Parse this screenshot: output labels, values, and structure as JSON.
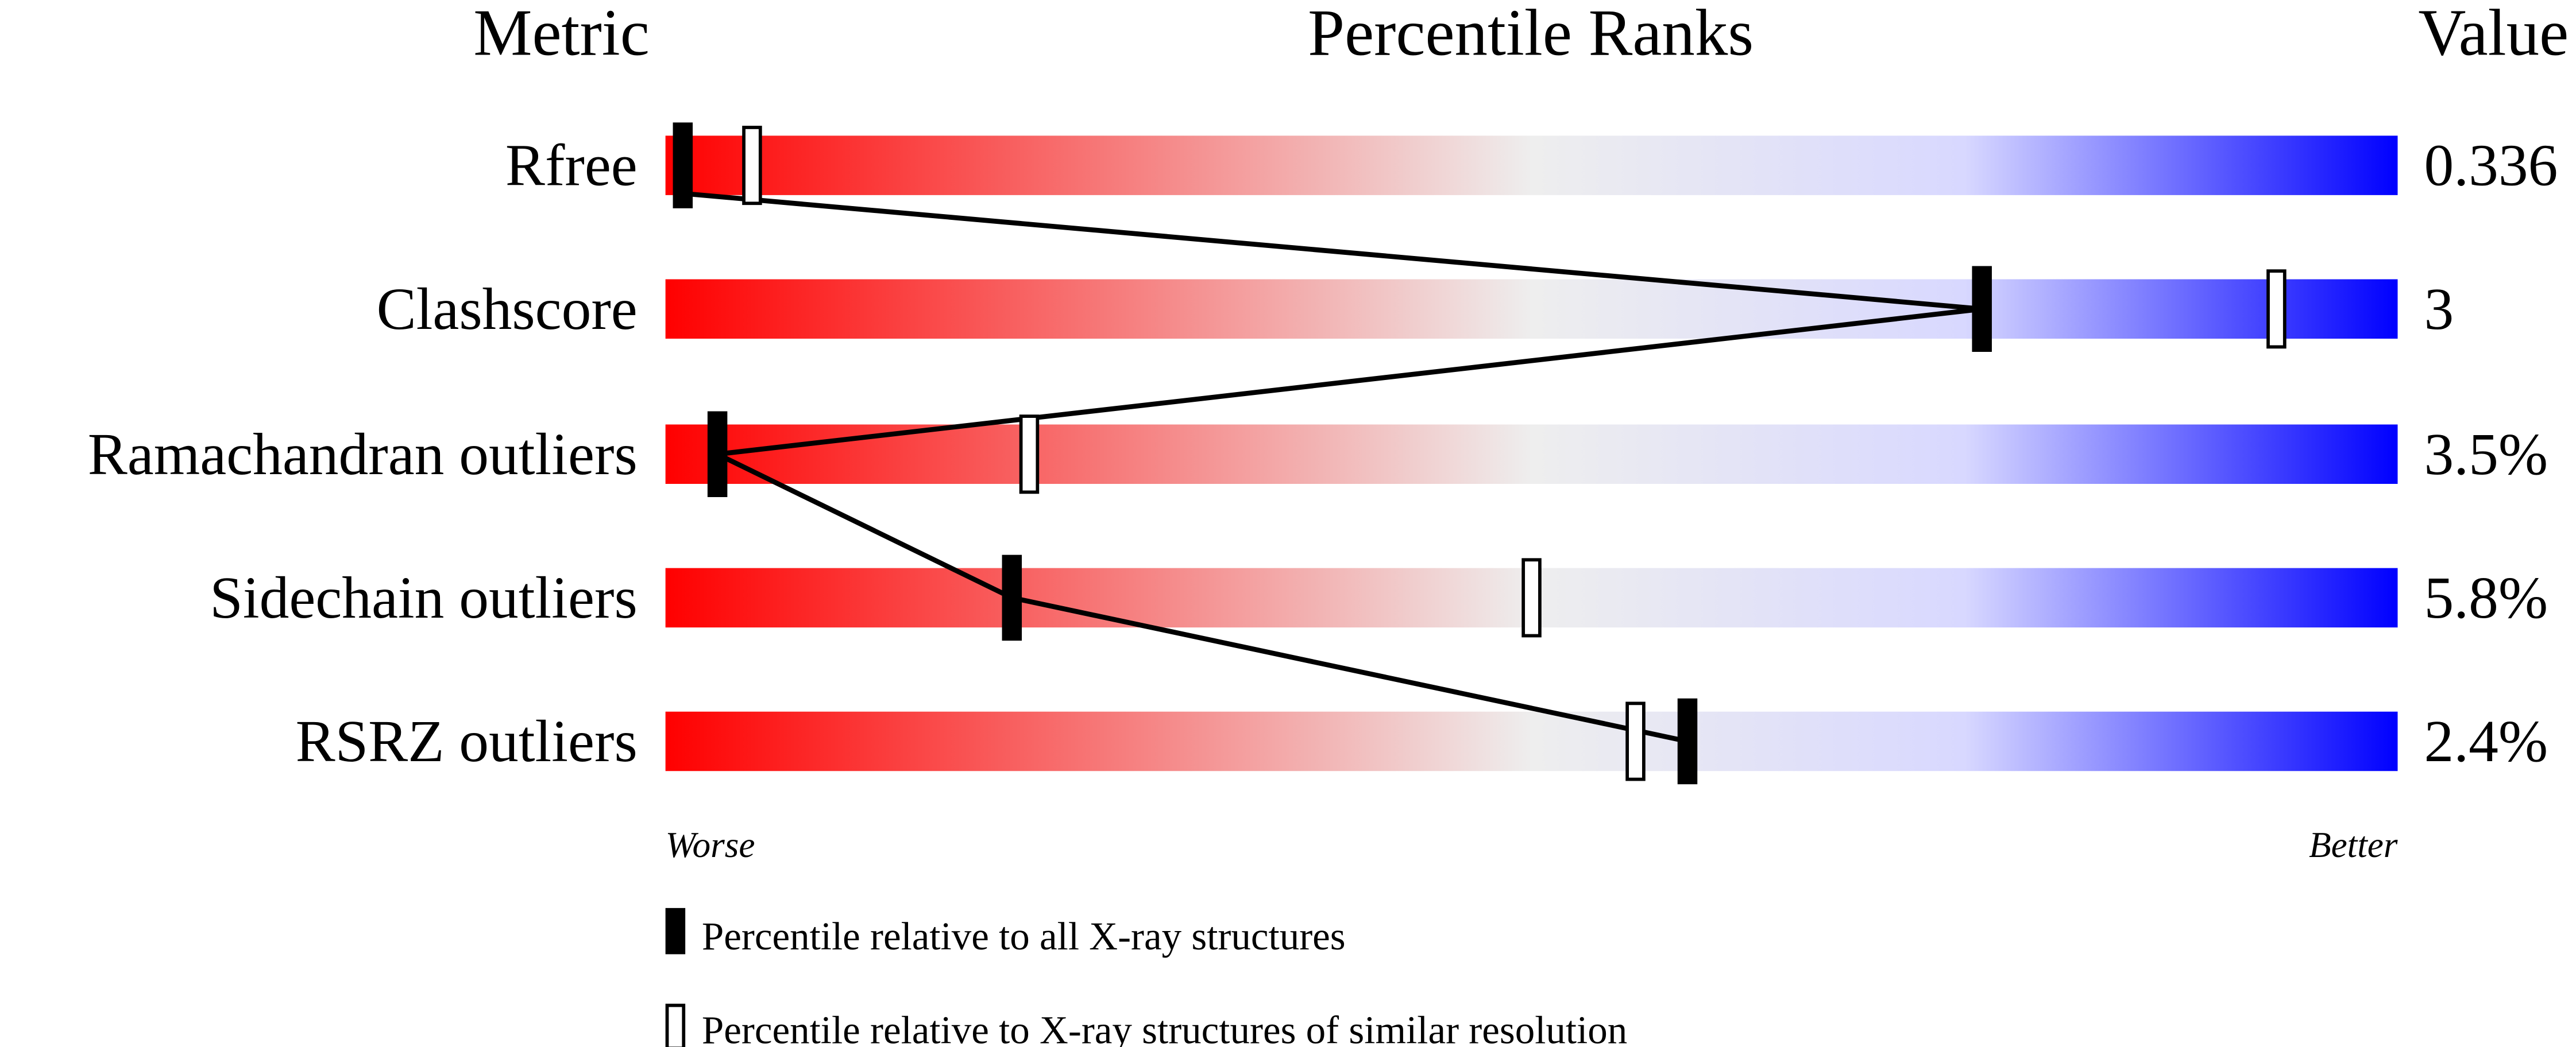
{
  "chart_data": {
    "type": "percentile-slider",
    "headers": {
      "metric": "Metric",
      "ranks": "Percentile Ranks",
      "value": "Value"
    },
    "axis": {
      "left": "Worse",
      "right": "Better",
      "range": [
        0,
        100
      ]
    },
    "metrics": [
      {
        "name": "Rfree",
        "value": "0.336",
        "percentile_all": 1,
        "percentile_similar": 5
      },
      {
        "name": "Clashscore",
        "value": "3",
        "percentile_all": 76,
        "percentile_similar": 93
      },
      {
        "name": "Ramachandran outliers",
        "value": "3.5%",
        "percentile_all": 3,
        "percentile_similar": 21
      },
      {
        "name": "Sidechain outliers",
        "value": "5.8%",
        "percentile_all": 20,
        "percentile_similar": 50
      },
      {
        "name": "RSRZ outliers",
        "value": "2.4%",
        "percentile_all": 59,
        "percentile_similar": 56
      }
    ],
    "legend": [
      {
        "marker": "filled",
        "label": "Percentile relative to all X-ray structures"
      },
      {
        "marker": "open",
        "label": "Percentile relative to X-ray structures of similar resolution"
      }
    ],
    "colors": {
      "worse": "#ff0000",
      "middle": "#eeeeee",
      "better": "#0000ff"
    }
  }
}
